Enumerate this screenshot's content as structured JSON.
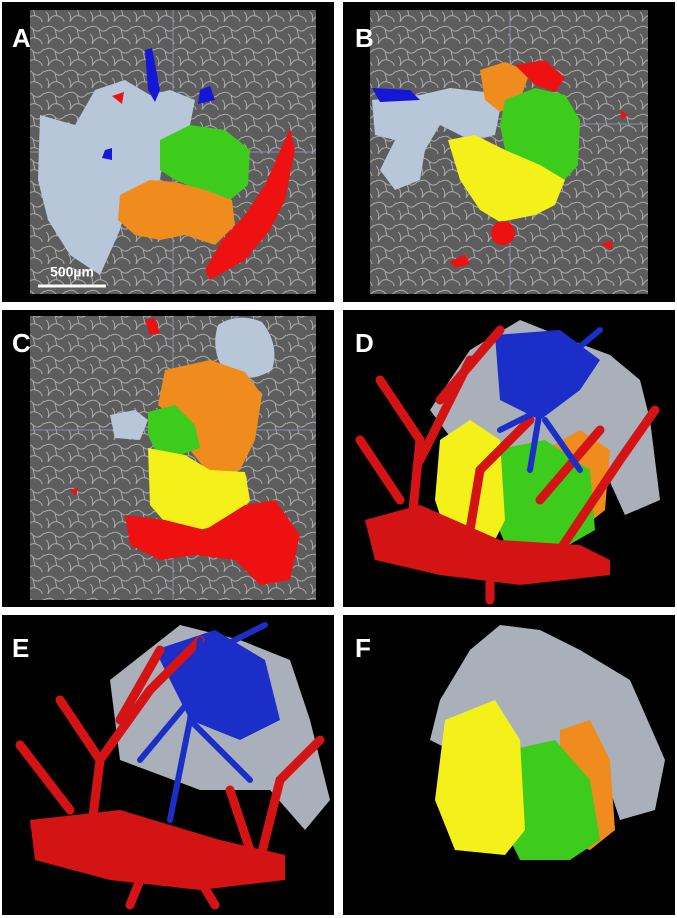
{
  "panels": [
    {
      "label": "A"
    },
    {
      "label": "B"
    },
    {
      "label": "C"
    },
    {
      "label": "D"
    },
    {
      "label": "E"
    },
    {
      "label": "F"
    }
  ],
  "scale_bar": "500µm"
}
